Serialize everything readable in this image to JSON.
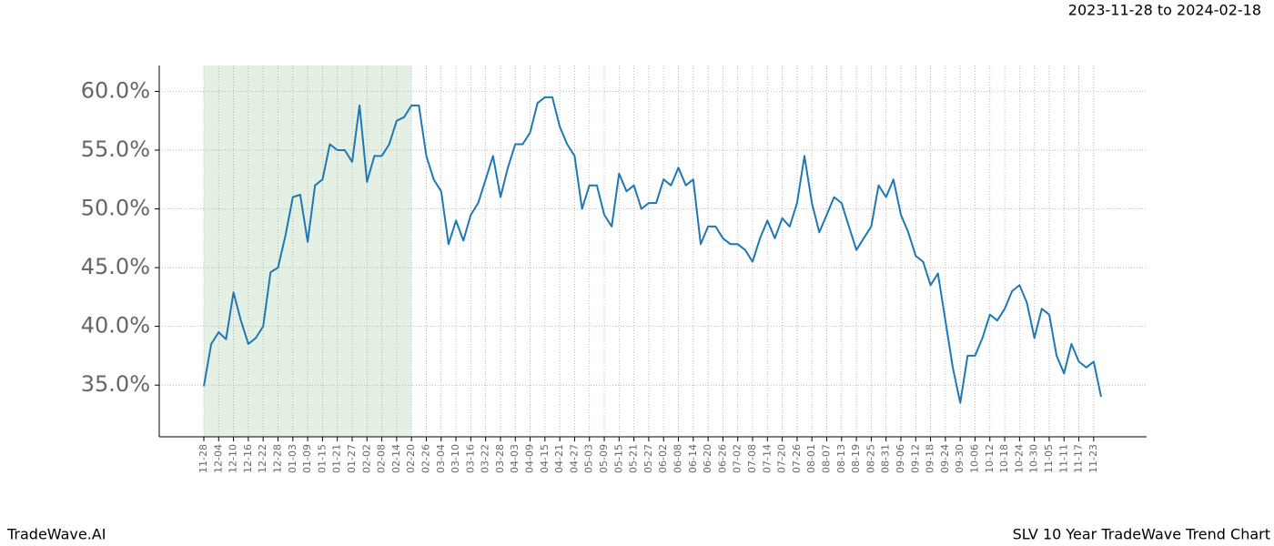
{
  "chart_data": {
    "type": "line",
    "date_range": "2023-11-28 to 2024-02-18",
    "brand": "TradeWave.AI",
    "title": "SLV 10 Year TradeWave Trend Chart",
    "categories": [
      "11-28",
      null,
      "12-04",
      null,
      "12-10",
      null,
      "12-16",
      null,
      "12-22",
      null,
      "12-28",
      null,
      "01-03",
      null,
      "01-09",
      null,
      "01-15",
      null,
      "01-21",
      null,
      "01-27",
      null,
      "02-02",
      null,
      "02-08",
      null,
      "02-14",
      null,
      "02-20",
      null,
      "02-26",
      null,
      "03-04",
      null,
      "03-10",
      null,
      "03-16",
      null,
      "03-22",
      null,
      "03-28",
      null,
      "04-03",
      null,
      "04-09",
      null,
      "04-15",
      null,
      "04-21",
      null,
      "04-27",
      null,
      "05-03",
      null,
      "05-09",
      null,
      "05-15",
      null,
      "05-21",
      null,
      "05-27",
      null,
      "06-02",
      null,
      "06-08",
      null,
      "06-14",
      null,
      "06-20",
      null,
      "06-26",
      null,
      "07-02",
      null,
      "07-08",
      null,
      "07-14",
      null,
      "07-20",
      null,
      "07-26",
      null,
      "08-01",
      null,
      "08-07",
      null,
      "08-13",
      null,
      "08-19",
      null,
      "08-25",
      null,
      "08-31",
      null,
      "09-06",
      null,
      "09-12",
      null,
      "09-18",
      null,
      "09-24",
      null,
      "09-30",
      null,
      "10-06",
      null,
      "10-12",
      null,
      "10-18",
      null,
      "10-24",
      null,
      "10-30",
      null,
      "11-05",
      null,
      "11-11",
      null,
      "11-17",
      null,
      "11-23",
      null
    ],
    "series": [
      {
        "name": "SLV",
        "color": "#1f77b4",
        "values": [
          34.9,
          38.5,
          39.5,
          38.9,
          42.9,
          40.5,
          38.5,
          39.0,
          40.0,
          44.6,
          45.0,
          47.7,
          51.0,
          51.2,
          47.2,
          52.0,
          52.5,
          55.5,
          55.0,
          55.0,
          54.0,
          58.8,
          52.3,
          54.5,
          54.5,
          55.5,
          57.5,
          57.8,
          58.8,
          58.8,
          54.5,
          52.5,
          51.5,
          47.0,
          49.0,
          47.3,
          49.5,
          50.5,
          52.5,
          54.5,
          51.0,
          53.5,
          55.5,
          55.5,
          56.5,
          59.0,
          59.5,
          59.5,
          57.0,
          55.5,
          54.5,
          50.0,
          52.0,
          52.0,
          49.5,
          48.5,
          53.0,
          51.5,
          52.0,
          50.0,
          50.5,
          50.5,
          52.5,
          52.0,
          53.5,
          52.0,
          52.5,
          47.0,
          48.5,
          48.5,
          47.5,
          47.0,
          47.0,
          46.5,
          45.5,
          47.5,
          49.0,
          47.5,
          49.2,
          48.5,
          50.5,
          54.5,
          50.5,
          48.0,
          49.5,
          51.0,
          50.5,
          48.5,
          46.5,
          47.5,
          48.5,
          52.0,
          51.0,
          52.5,
          49.5,
          48.0,
          46.0,
          45.5,
          43.5,
          44.5,
          40.5,
          36.5,
          33.5,
          37.5,
          37.5,
          39.0,
          41.0,
          40.5,
          41.5,
          43.0,
          43.5,
          42.0,
          39.0,
          41.5,
          41.0,
          37.5,
          36.0,
          38.5,
          37.0,
          36.5,
          37.0,
          34.0
        ]
      }
    ],
    "shaded_range": [
      "11-28",
      "02-20"
    ],
    "shade_color": "#e5f0e5",
    "ylim": [
      30.6,
      62.2
    ],
    "yticks": [
      {
        "value": 35,
        "label": "35.0%"
      },
      {
        "value": 40,
        "label": "40.0%"
      },
      {
        "value": 45,
        "label": "45.0%"
      },
      {
        "value": 50,
        "label": "50.0%"
      },
      {
        "value": 55,
        "label": "55.0%"
      },
      {
        "value": 60,
        "label": "60.0%"
      }
    ],
    "grid": true
  }
}
